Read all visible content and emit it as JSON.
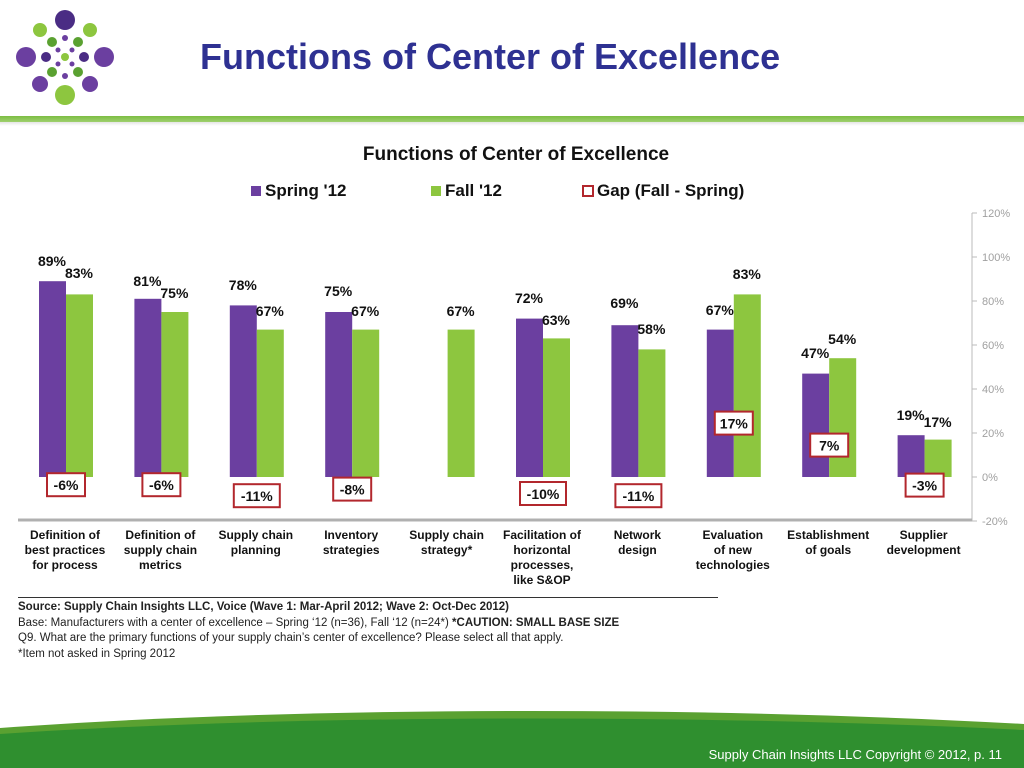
{
  "slide": {
    "title": "Functions of Center of Excellence",
    "footer": "Supply Chain Insights LLC Copyright © 2012, p. 11"
  },
  "colors": {
    "spring": "#6b3fa0",
    "fall": "#8dc63f",
    "gap_border": "#b2272d",
    "title": "#2e3192",
    "accent_green": "#5aa131"
  },
  "source": {
    "line1": "Source:  Supply Chain Insights LLC, Voice (Wave 1: Mar-April 2012; Wave 2: Oct-Dec 2012)",
    "line2": "Base:  Manufacturers with a center of excellence – Spring ‘12 (n=36), Fall ‘12 (n=24*) ",
    "caution": "*CAUTION:  SMALL BASE SIZE",
    "line3": "Q9. What are the primary functions of your supply chain’s center of excellence?  Please select all that apply.",
    "line4": "*Item not asked in Spring 2012"
  },
  "chart_data": {
    "type": "bar",
    "title": "Functions of Center of Excellence",
    "categories": [
      "Definition of best practices for process",
      "Definition of supply chain metrics",
      "Supply chain planning",
      "Inventory strategies",
      "Supply chain strategy*",
      "Facilitation of horizontal processes, like S&OP",
      "Network design",
      "Evaluation of new technologies",
      "Establishment of goals",
      "Supplier development"
    ],
    "category_lines": [
      [
        "Definition of",
        "best practices",
        "for process"
      ],
      [
        "Definition of",
        "supply chain",
        "metrics"
      ],
      [
        "Supply chain",
        "planning"
      ],
      [
        "Inventory",
        "strategies"
      ],
      [
        "Supply chain",
        "strategy*"
      ],
      [
        "Facilitation of",
        "horizontal",
        "processes,",
        "like S&OP"
      ],
      [
        "Network",
        "design"
      ],
      [
        "Evaluation",
        "of new",
        "technologies"
      ],
      [
        "Establishment",
        "of goals"
      ],
      [
        "Supplier",
        "development"
      ]
    ],
    "series": [
      {
        "name": "Spring '12",
        "values": [
          89,
          81,
          78,
          75,
          null,
          72,
          69,
          67,
          47,
          19
        ]
      },
      {
        "name": "Fall '12",
        "values": [
          83,
          75,
          67,
          67,
          67,
          63,
          58,
          83,
          54,
          17
        ]
      },
      {
        "name": "Gap (Fall - Spring)",
        "values": [
          -6,
          -6,
          -11,
          -8,
          null,
          -10,
          -11,
          17,
          7,
          -3
        ]
      }
    ],
    "ylim": [
      -20,
      120
    ],
    "yticks": [
      -20,
      0,
      20,
      40,
      60,
      80,
      100,
      120
    ],
    "ytick_labels": [
      "-20%",
      "0%",
      "20%",
      "40%",
      "60%",
      "80%",
      "100%",
      "120%"
    ],
    "legend_position": "top",
    "grid": false
  }
}
